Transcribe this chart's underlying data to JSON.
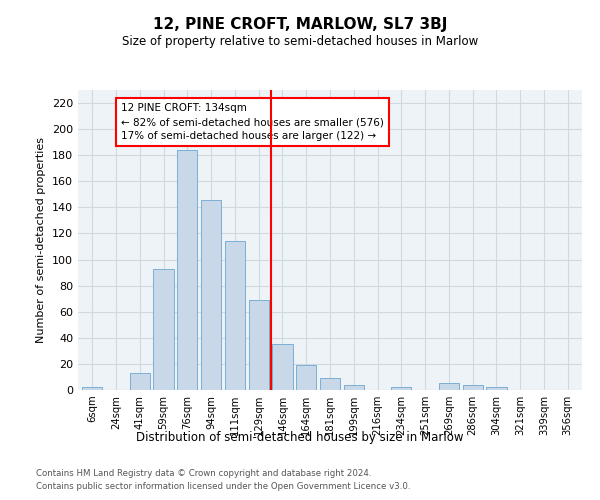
{
  "title": "12, PINE CROFT, MARLOW, SL7 3BJ",
  "subtitle": "Size of property relative to semi-detached houses in Marlow",
  "xlabel": "Distribution of semi-detached houses by size in Marlow",
  "ylabel": "Number of semi-detached properties",
  "bar_labels": [
    "6sqm",
    "24sqm",
    "41sqm",
    "59sqm",
    "76sqm",
    "94sqm",
    "111sqm",
    "129sqm",
    "146sqm",
    "164sqm",
    "181sqm",
    "199sqm",
    "216sqm",
    "234sqm",
    "251sqm",
    "269sqm",
    "286sqm",
    "304sqm",
    "321sqm",
    "339sqm",
    "356sqm"
  ],
  "bar_values": [
    2,
    0,
    13,
    93,
    184,
    146,
    114,
    69,
    35,
    19,
    9,
    4,
    0,
    2,
    0,
    5,
    4,
    2,
    0,
    0,
    0
  ],
  "bar_color": "#c8d8e8",
  "bar_edge_color": "#7bafd4",
  "vline_x": 7.5,
  "vline_label": "12 PINE CROFT: 134sqm",
  "pct_smaller": "82% of semi-detached houses are smaller (576)",
  "pct_larger": "17% of semi-detached houses are larger (122)",
  "ylim": [
    0,
    230
  ],
  "yticks": [
    0,
    20,
    40,
    60,
    80,
    100,
    120,
    140,
    160,
    180,
    200,
    220
  ],
  "grid_color": "#d0d8e0",
  "bg_color": "#eef3f8",
  "footer1": "Contains HM Land Registry data © Crown copyright and database right 2024.",
  "footer2": "Contains public sector information licensed under the Open Government Licence v3.0."
}
